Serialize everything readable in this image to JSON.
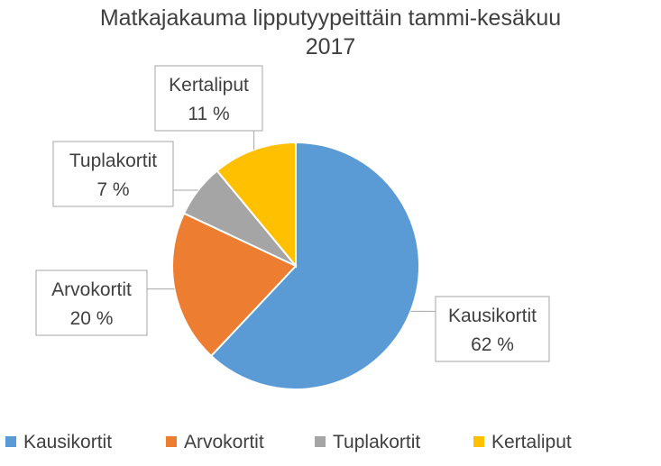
{
  "chart_data": {
    "type": "pie",
    "title_line1": "Matkajakauma lipputyypeittäin tammi-kesäkuu",
    "title_line2": "2017",
    "categories": [
      "Kausikortit",
      "Arvokortit",
      "Tuplakortit",
      "Kertaliput"
    ],
    "values": [
      62,
      20,
      7,
      11
    ],
    "value_labels": [
      "62 %",
      "20 %",
      "7 %",
      "11 %"
    ],
    "colors": [
      "#5B9BD5",
      "#ED7D31",
      "#A5A5A5",
      "#FFC000"
    ],
    "legend": "bottom"
  }
}
